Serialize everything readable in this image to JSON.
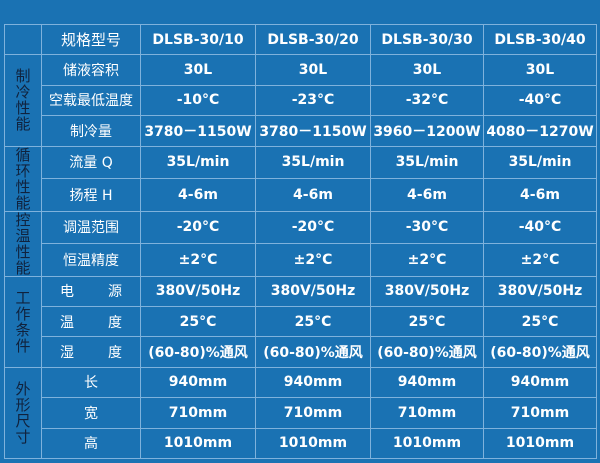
{
  "header": {
    "label": "规格型号",
    "models": [
      "DLSB-30/10",
      "DLSB-30/20",
      "DLSB-30/30",
      "DLSB-30/40"
    ]
  },
  "groups": [
    {
      "name": "制冷性能",
      "rows": [
        {
          "label": "储液容积",
          "values": [
            "30L",
            "30L",
            "30L",
            "30L"
          ]
        },
        {
          "label": "空载最低温度",
          "values": [
            "-10°C",
            "-23°C",
            "-32°C",
            "-40°C"
          ]
        },
        {
          "label": "制冷量",
          "values": [
            "3780－1150W",
            "3780－1150W",
            "3960－1200W",
            "4080－1270W"
          ]
        }
      ]
    },
    {
      "name": "循环性能",
      "rows": [
        {
          "label": "流量 Q",
          "values": [
            "35L/min",
            "35L/min",
            "35L/min",
            "35L/min"
          ]
        },
        {
          "label": "扬程 H",
          "values": [
            "4-6m",
            "4-6m",
            "4-6m",
            "4-6m"
          ]
        }
      ]
    },
    {
      "name": "控温性能",
      "rows": [
        {
          "label": "调温范围",
          "values": [
            "-20°C",
            "-20°C",
            "-30°C",
            "-40°C"
          ]
        },
        {
          "label": "恒温精度",
          "values": [
            "±2°C",
            "±2°C",
            "±2°C",
            "±2°C"
          ]
        }
      ]
    },
    {
      "name": "工作条件",
      "rows": [
        {
          "label": "电源",
          "values": [
            "380V/50Hz",
            "380V/50Hz",
            "380V/50Hz",
            "380V/50Hz"
          ],
          "spaced": true
        },
        {
          "label": "温度",
          "values": [
            "25°C",
            "25°C",
            "25°C",
            "25°C"
          ],
          "spaced": true
        },
        {
          "label": "湿度",
          "values": [
            "(60-80)%通风",
            "(60-80)%通风",
            "(60-80)%通风",
            "(60-80)%通风"
          ],
          "spaced": true
        }
      ]
    },
    {
      "name": "外形尺寸",
      "rows": [
        {
          "label": "长",
          "values": [
            "940mm",
            "940mm",
            "940mm",
            "940mm"
          ]
        },
        {
          "label": "宽",
          "values": [
            "710mm",
            "710mm",
            "710mm",
            "710mm"
          ]
        },
        {
          "label": "高",
          "values": [
            "1010mm",
            "1010mm",
            "1010mm",
            "1010mm"
          ]
        }
      ]
    }
  ],
  "colors": {
    "background": "#1a72b3",
    "grid": "#7fb2dc",
    "group_text": "#10223d"
  }
}
